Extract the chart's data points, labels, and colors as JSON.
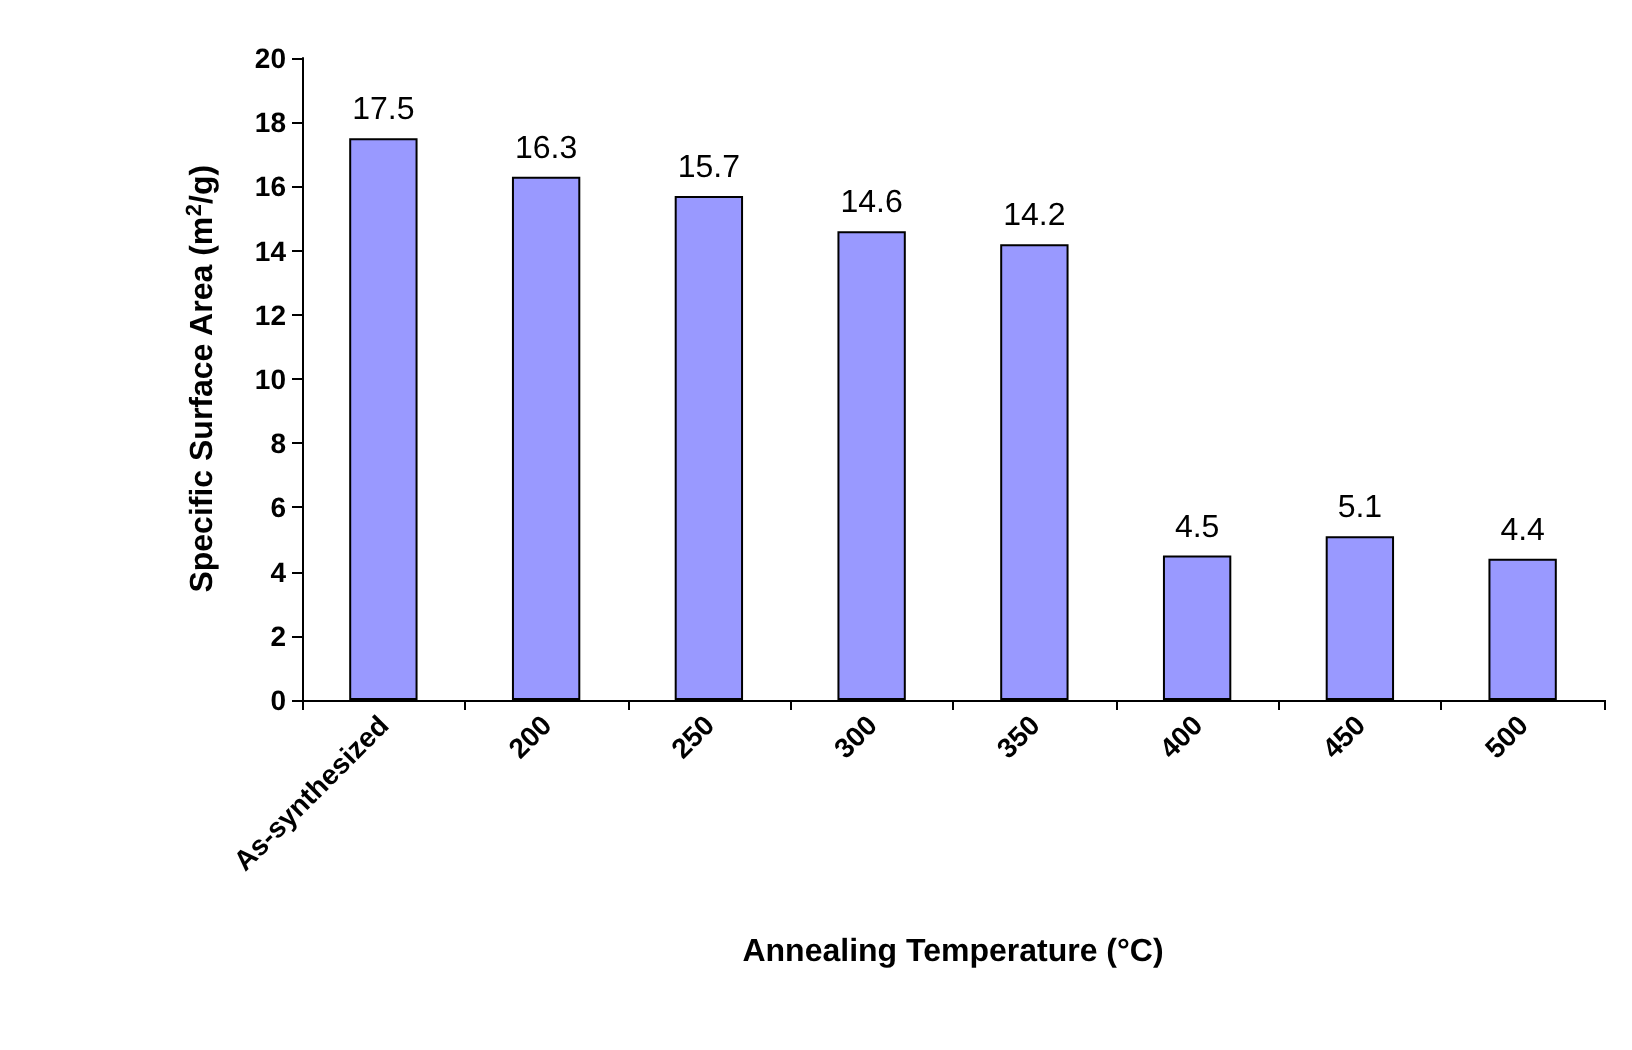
{
  "chart_data": {
    "type": "bar",
    "xlabel": "Annealing Temperature (°C)",
    "ylabel": "Specific Surface Area (m$^{2}$/g)",
    "categories": [
      "As-synthesized",
      "200",
      "250",
      "300",
      "350",
      "400",
      "450",
      "500"
    ],
    "values": [
      17.5,
      16.3,
      15.7,
      14.6,
      14.2,
      4.5,
      5.1,
      4.4
    ],
    "color": "#9999ff",
    "ylim": [
      0,
      20
    ],
    "yticks": [
      0,
      2,
      4,
      6,
      8,
      10,
      12,
      14,
      16,
      18,
      20
    ],
    "grid": false,
    "data_labels": true
  }
}
